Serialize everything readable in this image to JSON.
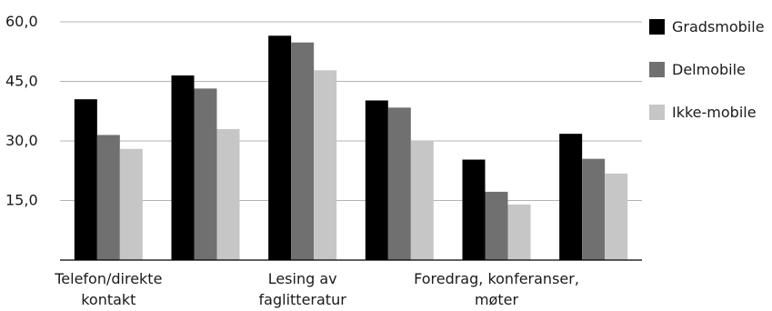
{
  "chart_data": {
    "type": "bar",
    "categories": [
      [
        "Telefon/direkte",
        "kontakt"
      ],
      [
        "",
        ""
      ],
      [
        "Lesing av",
        "faglitteratur"
      ],
      [
        "",
        ""
      ],
      [
        "Foredrag, konferanser,",
        "møter"
      ],
      [
        "",
        ""
      ]
    ],
    "series": [
      {
        "name": "Gradsmobile",
        "color": "#000000",
        "values": [
          40.5,
          46.5,
          56.5,
          40.2,
          25.3,
          31.8
        ]
      },
      {
        "name": "Delmobile",
        "color": "#707070",
        "values": [
          31.5,
          43.2,
          54.8,
          38.4,
          17.2,
          25.5
        ]
      },
      {
        "name": "Ikke-mobile",
        "color": "#c6c6c6",
        "values": [
          28.0,
          33.0,
          47.8,
          30.0,
          14.0,
          21.8
        ]
      }
    ],
    "yticks": [
      "15,0",
      "30,0",
      "45,0",
      "60,0"
    ],
    "ytick_values": [
      15,
      30,
      45,
      60
    ],
    "ylim": [
      0,
      60
    ],
    "grid": true,
    "legend_position": "right"
  }
}
